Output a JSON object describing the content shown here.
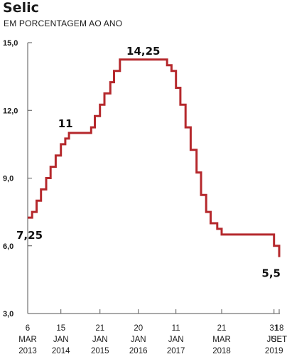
{
  "chart_data": {
    "type": "line",
    "step": true,
    "title": "Selic",
    "subtitle": "EM PORCENTAGEM AO ANO",
    "ylim": [
      3.0,
      15.0
    ],
    "y_ticks": [
      {
        "value": 15.0,
        "label": "15,0"
      },
      {
        "value": 12.0,
        "label": "12,0"
      },
      {
        "value": 9.0,
        "label": "9,0"
      },
      {
        "value": 6.0,
        "label": "6,0"
      },
      {
        "value": 3.0,
        "label": "3,0"
      }
    ],
    "x_range": [
      "2013-03-06",
      "2019-09-18"
    ],
    "x_ticks": [
      {
        "date": "2013-03-06",
        "day": "6",
        "month": "MAR",
        "year": "2013"
      },
      {
        "date": "2014-01-15",
        "day": "15",
        "month": "JAN",
        "year": "2014"
      },
      {
        "date": "2015-01-21",
        "day": "21",
        "month": "JAN",
        "year": "2015"
      },
      {
        "date": "2016-01-20",
        "day": "20",
        "month": "JAN",
        "year": "2016"
      },
      {
        "date": "2017-01-11",
        "day": "11",
        "month": "JAN",
        "year": "2017"
      },
      {
        "date": "2018-03-21",
        "day": "21",
        "month": "MAR",
        "year": "2018"
      },
      {
        "date": "2019-07-31",
        "day": "31",
        "month": "JUL",
        "year": "2019"
      },
      {
        "date": "2019-09-18",
        "day": "18",
        "month": "SET",
        "year": ""
      }
    ],
    "series": [
      {
        "color": "#b5282c",
        "points": [
          {
            "x": "2013-03-06",
            "y": 7.25
          },
          {
            "x": "2013-04-17",
            "y": 7.5
          },
          {
            "x": "2013-05-29",
            "y": 8.0
          },
          {
            "x": "2013-07-10",
            "y": 8.5
          },
          {
            "x": "2013-08-28",
            "y": 9.0
          },
          {
            "x": "2013-10-09",
            "y": 9.5
          },
          {
            "x": "2013-11-27",
            "y": 10.0
          },
          {
            "x": "2014-01-15",
            "y": 10.5
          },
          {
            "x": "2014-02-26",
            "y": 10.75
          },
          {
            "x": "2014-04-02",
            "y": 11.0
          },
          {
            "x": "2014-10-29",
            "y": 11.25
          },
          {
            "x": "2014-12-03",
            "y": 11.75
          },
          {
            "x": "2015-01-21",
            "y": 12.25
          },
          {
            "x": "2015-03-04",
            "y": 12.75
          },
          {
            "x": "2015-04-29",
            "y": 13.25
          },
          {
            "x": "2015-06-03",
            "y": 13.75
          },
          {
            "x": "2015-07-29",
            "y": 14.25
          },
          {
            "x": "2016-10-19",
            "y": 14.0
          },
          {
            "x": "2016-11-30",
            "y": 13.75
          },
          {
            "x": "2017-01-11",
            "y": 13.0
          },
          {
            "x": "2017-02-22",
            "y": 12.25
          },
          {
            "x": "2017-04-12",
            "y": 11.25
          },
          {
            "x": "2017-05-31",
            "y": 10.25
          },
          {
            "x": "2017-07-26",
            "y": 9.25
          },
          {
            "x": "2017-09-06",
            "y": 8.25
          },
          {
            "x": "2017-10-25",
            "y": 7.5
          },
          {
            "x": "2017-12-06",
            "y": 7.0
          },
          {
            "x": "2018-02-07",
            "y": 6.75
          },
          {
            "x": "2018-03-21",
            "y": 6.5
          },
          {
            "x": "2019-07-31",
            "y": 6.0
          },
          {
            "x": "2019-09-18",
            "y": 5.5
          }
        ]
      }
    ],
    "annotations": [
      {
        "text": "7,25",
        "x": "2013-03-06",
        "y": 7.25
      },
      {
        "text": "11",
        "x": "2014-04-02",
        "y": 11.0
      },
      {
        "text": "14,25",
        "x": "2015-07-29",
        "y": 14.25
      },
      {
        "text": "5,5",
        "x": "2019-09-18",
        "y": 5.5
      }
    ],
    "grid": false
  }
}
